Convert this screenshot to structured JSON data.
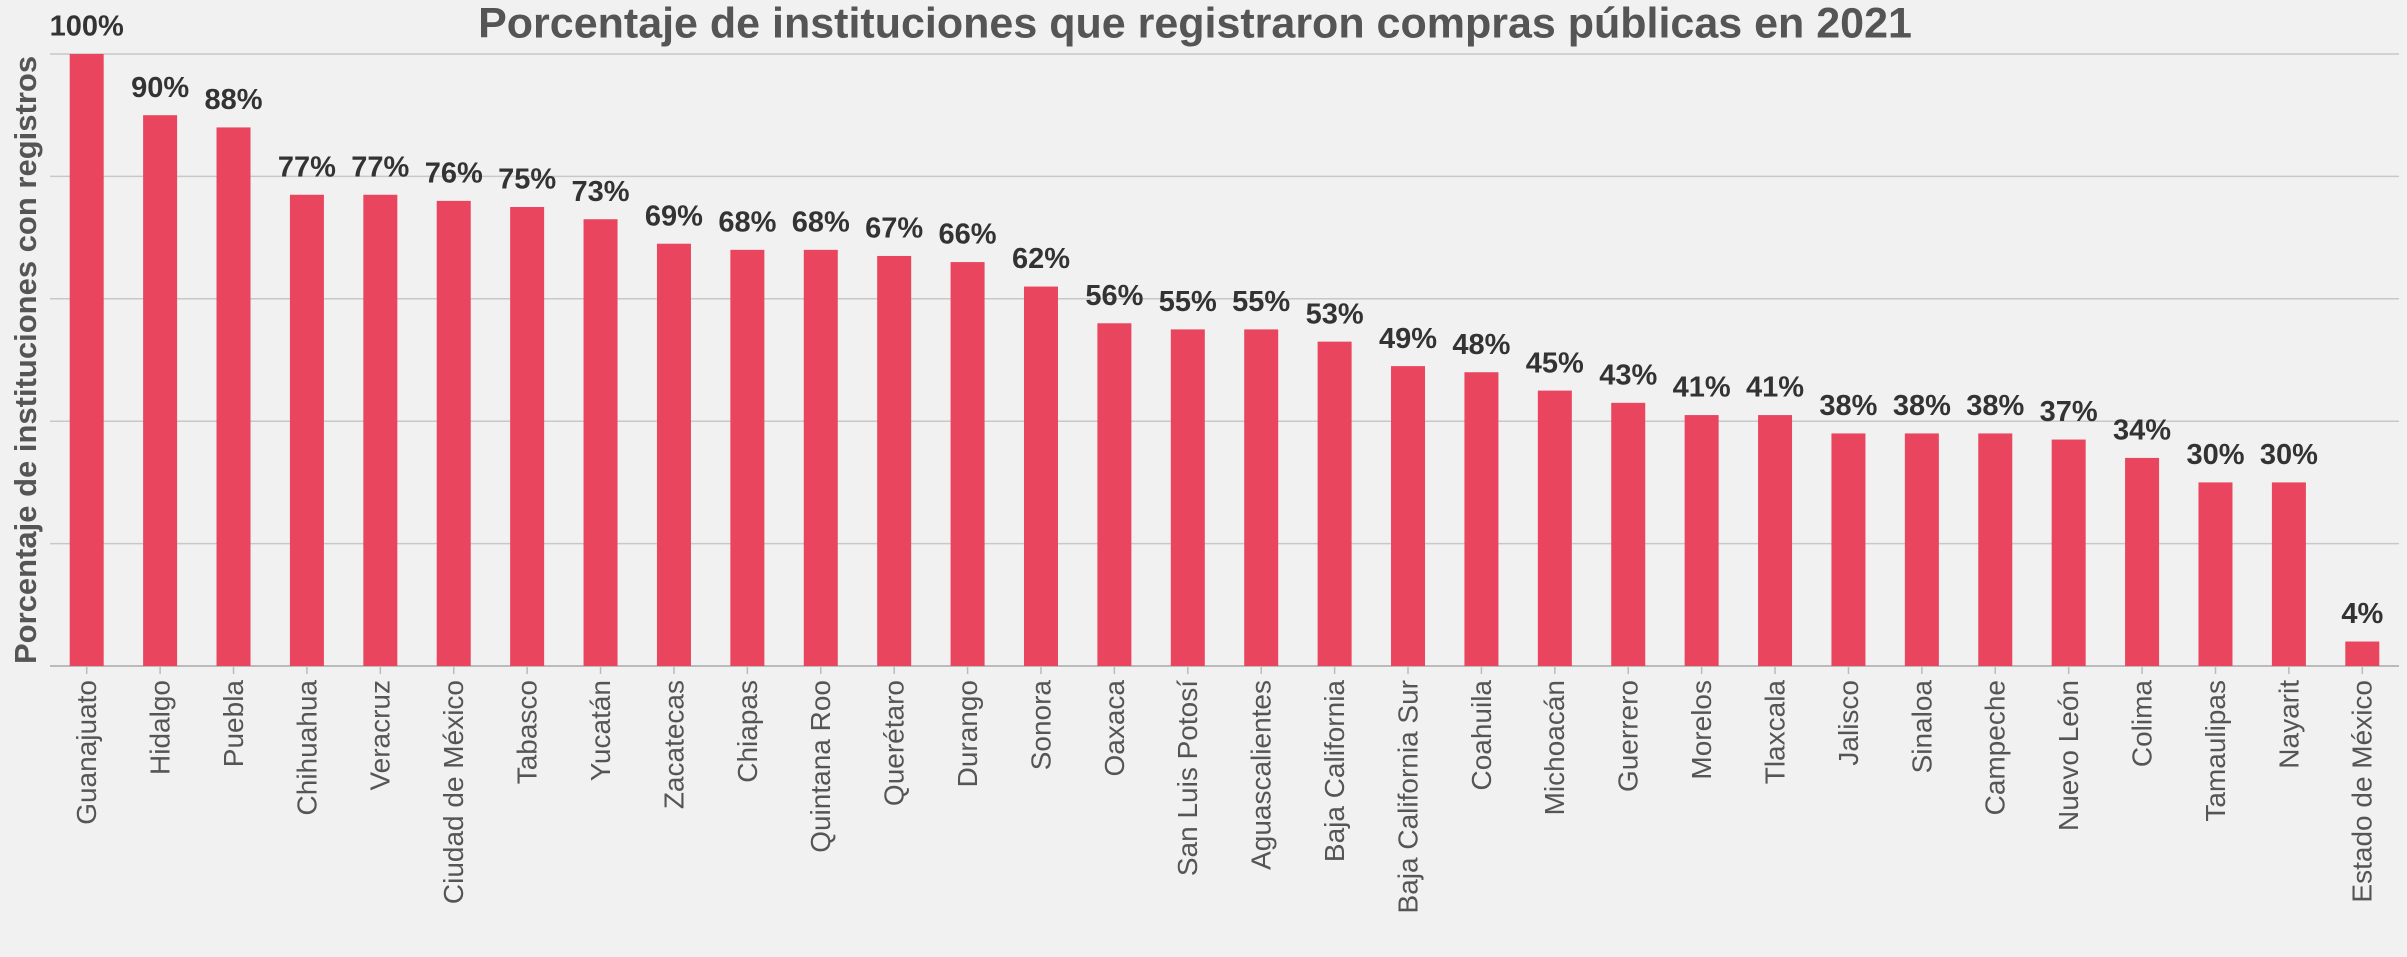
{
  "chart_data": {
    "type": "bar",
    "title": "Porcentaje de instituciones que registraron compras públicas en 2021",
    "y_label": "Porcentaje de instituciones con registros",
    "categories": [
      "Guanajuato",
      "Hidalgo",
      "Puebla",
      "Chihuahua",
      "Veracruz",
      "Ciudad de México",
      "Tabasco",
      "Yucatán",
      "Zacatecas",
      "Chiapas",
      "Quintana Roo",
      "Querétaro",
      "Durango",
      "Sonora",
      "Oaxaca",
      "San Luis Potosí",
      "Aguascalientes",
      "Baja California",
      "Baja California Sur",
      "Coahuila",
      "Michoacán",
      "Guerrero",
      "Morelos",
      "Tlaxcala",
      "Jalisco",
      "Sinaloa",
      "Campeche",
      "Nuevo León",
      "Colima",
      "Tamaulipas",
      "Nayarit",
      "Estado de México"
    ],
    "values": [
      100,
      90,
      88,
      77,
      77,
      76,
      75,
      73,
      69,
      68,
      68,
      67,
      66,
      62,
      56,
      55,
      55,
      53,
      49,
      48,
      45,
      43,
      41,
      41,
      38,
      38,
      38,
      37,
      34,
      30,
      30,
      4
    ],
    "value_labels": [
      "100%",
      "90%",
      "88%",
      "77%",
      "77%",
      "76%",
      "75%",
      "73%",
      "69%",
      "68%",
      "68%",
      "67%",
      "66%",
      "62%",
      "56%",
      "55%",
      "55%",
      "53%",
      "49%",
      "48%",
      "45%",
      "43%",
      "41%",
      "41%",
      "38%",
      "38%",
      "38%",
      "37%",
      "34%",
      "30%",
      "30%",
      "4%"
    ],
    "color": "#e9455f",
    "ylim": [
      0,
      100
    ],
    "yticks": [
      0,
      20,
      40,
      60,
      80,
      100
    ],
    "grid": true
  }
}
